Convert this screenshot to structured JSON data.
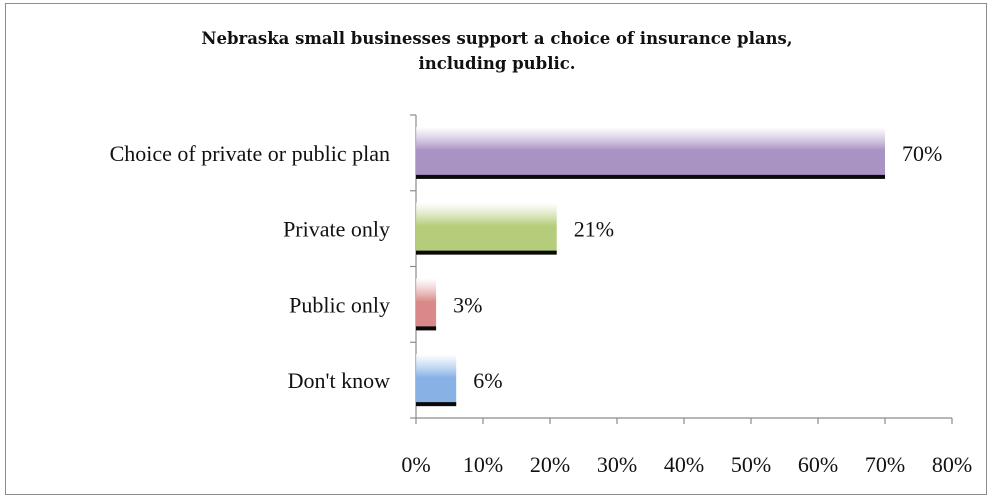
{
  "chart_data": {
    "type": "bar",
    "orientation": "horizontal",
    "title_lines": [
      "Nebraska small businesses support a choice of insurance plans,",
      "including public."
    ],
    "categories": [
      "Choice of private or public plan",
      "Private only",
      "Public only",
      "Don't know"
    ],
    "values": [
      70,
      21,
      3,
      6
    ],
    "value_labels": [
      "70%",
      "21%",
      "3%",
      "6%"
    ],
    "bar_colors": [
      "#a992c4",
      "#b5cc7a",
      "#d98a88",
      "#88b2e6"
    ],
    "xlim": [
      0,
      80
    ],
    "xticks": [
      0,
      10,
      20,
      30,
      40,
      50,
      60,
      70,
      80
    ],
    "xtick_labels": [
      "0%",
      "10%",
      "20%",
      "30%",
      "40%",
      "50%",
      "60%",
      "70%",
      "80%"
    ],
    "xlabel": "",
    "ylabel": "",
    "grid": false,
    "legend": "none"
  }
}
